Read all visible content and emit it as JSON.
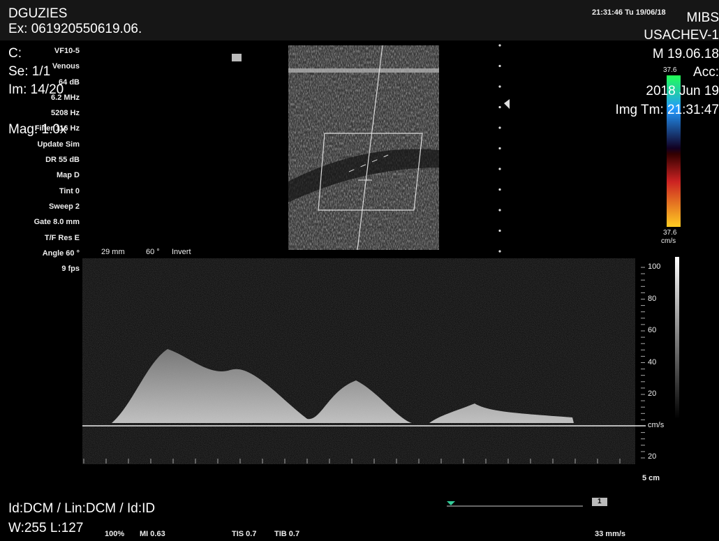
{
  "header": {
    "patient": "DGUZIES",
    "exam": "Ex: 061920550619.06.",
    "center": "MIBS",
    "time": "21:31:46  Tu  19/06/18",
    "name": "USACHEV-1",
    "date_short": "M 19.06.18",
    "acc": "Acc:",
    "date": "2018 Jun 19",
    "img_time": "Img Tm: 21:31:47"
  },
  "info": {
    "c": "C:",
    "series": "Se: 1/1",
    "image": "Im: 14/20",
    "mag": "Mag: 1.0x"
  },
  "params": [
    "VF10-5",
    "Venous",
    "64 dB",
    "6.2 MHz",
    "5208 Hz",
    "Filter 116 Hz",
    "Update Sim",
    "DR 55 dB",
    "Map D",
    "Tint 0",
    "Sweep 2",
    "Gate 8.0 mm",
    "T/F Res E",
    "Angle 60 °",
    "9 fps"
  ],
  "image_info": [
    "29 mm",
    "60 °",
    "Invert"
  ],
  "color_scale": {
    "max": "37.6",
    "min": "37.6",
    "unit": "cm/s"
  },
  "velocity_scale": {
    "labels": [
      100,
      80,
      60,
      40,
      20
    ],
    "unit": "cm/s",
    "reverse": 20
  },
  "depth": "5 cm",
  "sweep_speed": "33 mm/s",
  "page": "1",
  "footer": {
    "ids": "Id:DCM / Lin:DCM / Id:ID",
    "window": "W:255  L:127",
    "power": "100%",
    "mi": "MI 0.63",
    "tis": "TIS 0.7",
    "tib": "TIB 0.7"
  }
}
